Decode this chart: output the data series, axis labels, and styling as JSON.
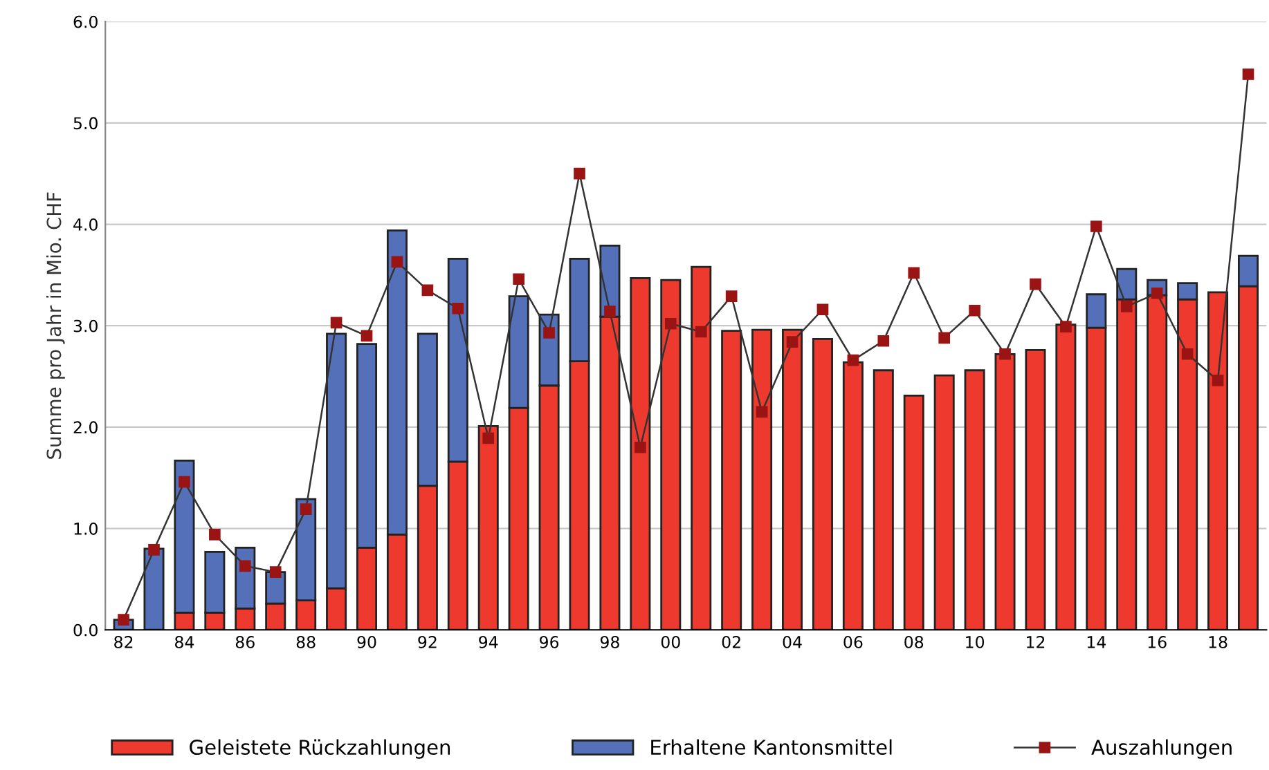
{
  "chart_data": {
    "type": "bar",
    "stacked": true,
    "ylabel": "Summe pro Jahr in Mio. CHF",
    "categories": [
      "82",
      null,
      "84",
      null,
      "86",
      null,
      "88",
      null,
      "90",
      null,
      "92",
      null,
      "94",
      null,
      "96",
      null,
      "98",
      null,
      "00",
      null,
      "02",
      null,
      "04",
      null,
      "06",
      null,
      "08",
      null,
      "10",
      null,
      "12",
      null,
      "14",
      null,
      "16",
      null,
      "18",
      null
    ],
    "series": [
      {
        "name": "Geleistete Rückzahlungen",
        "color": "#ee3a2e",
        "values": [
          null,
          null,
          0.17,
          0.17,
          0.21,
          0.26,
          0.29,
          0.41,
          0.81,
          0.94,
          1.42,
          1.66,
          2.01,
          2.19,
          2.41,
          2.65,
          3.09,
          3.47,
          3.45,
          3.58,
          2.95,
          2.96,
          2.96,
          2.87,
          2.64,
          2.56,
          2.31,
          2.51,
          2.56,
          2.72,
          2.76,
          3.01,
          2.98,
          3.26,
          3.3,
          3.26,
          3.33,
          3.39
        ]
      },
      {
        "name": "Erhaltene Kantonsmittel",
        "color": "#5470b8",
        "values": [
          0.1,
          0.8,
          1.5,
          0.6,
          0.6,
          0.31,
          1.0,
          2.51,
          2.01,
          3.0,
          1.5,
          2.0,
          null,
          1.1,
          0.7,
          1.01,
          0.7,
          null,
          null,
          null,
          null,
          null,
          null,
          null,
          null,
          null,
          null,
          null,
          null,
          null,
          null,
          null,
          0.33,
          0.3,
          0.15,
          0.16,
          null,
          0.3
        ]
      },
      {
        "name": "Auszahlungen",
        "type": "line",
        "color": "#9b1414",
        "marker": "square",
        "values": [
          0.1,
          0.79,
          1.46,
          0.94,
          0.63,
          0.57,
          1.19,
          3.03,
          2.9,
          3.63,
          3.35,
          3.17,
          1.89,
          3.46,
          2.93,
          4.5,
          3.14,
          1.8,
          3.02,
          2.94,
          3.29,
          2.15,
          2.84,
          3.16,
          2.66,
          2.85,
          3.52,
          2.88,
          3.15,
          2.72,
          3.41,
          2.99,
          3.98,
          3.19,
          3.32,
          2.72,
          2.46,
          5.48
        ]
      }
    ],
    "ylim": [
      0,
      6
    ],
    "yticks": [
      {
        "value": 0,
        "label": "0.0"
      },
      {
        "value": 1,
        "label": "1.0"
      },
      {
        "value": 2,
        "label": "2.0"
      },
      {
        "value": 3,
        "label": "3.0"
      },
      {
        "value": 4,
        "label": "4.0"
      },
      {
        "value": 5,
        "label": "5.0"
      },
      {
        "value": 6,
        "label": "6.0"
      }
    ],
    "grid": "y",
    "legend": "bottom"
  }
}
